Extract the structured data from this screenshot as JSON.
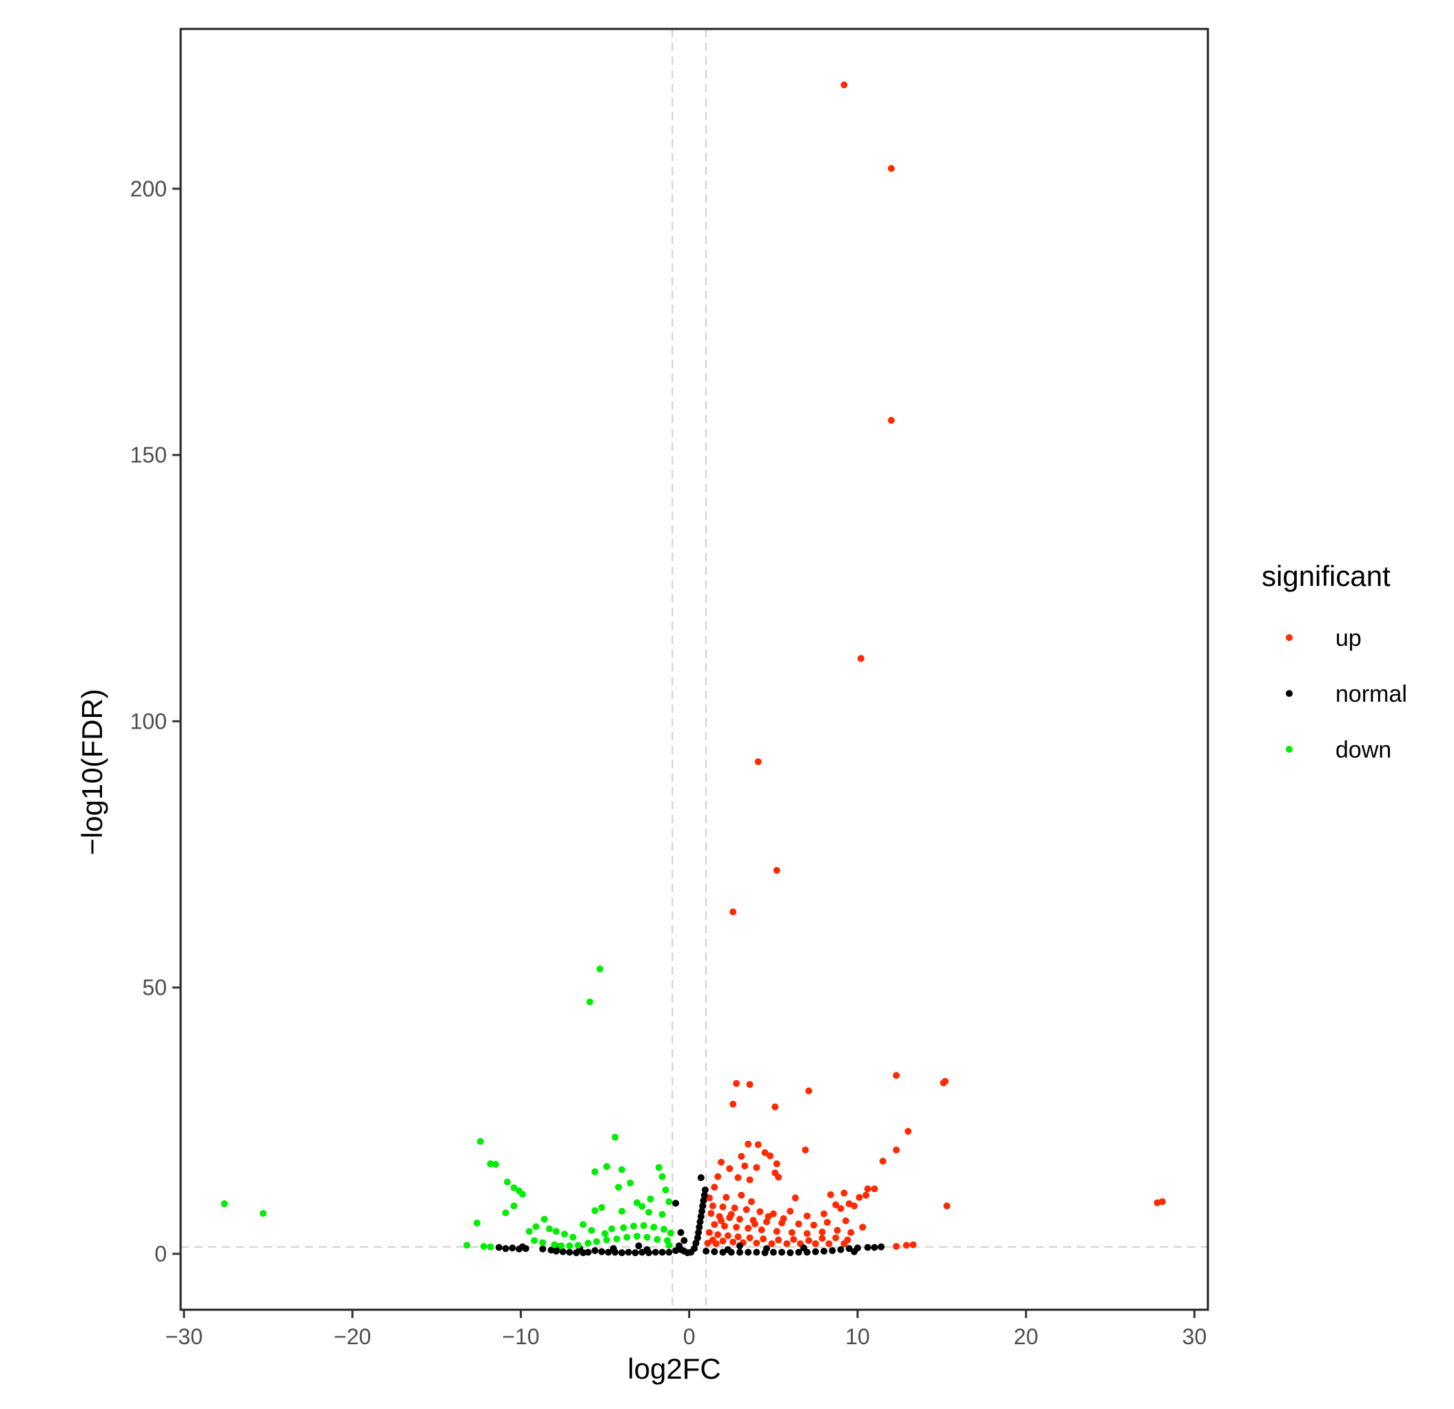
{
  "chart_data": {
    "type": "scatter",
    "title": "",
    "xlabel": "log2FC",
    "ylabel": "−log10(FDR)",
    "xlim": [
      -30.2,
      30.8
    ],
    "ylim": [
      -10.5,
      230
    ],
    "x_ticks": [
      -30,
      -20,
      -10,
      0,
      10,
      20,
      30
    ],
    "x_tick_labels": [
      "−30",
      "−20",
      "−10",
      "0",
      "10",
      "20",
      "30"
    ],
    "y_ticks": [
      0,
      50,
      100,
      150,
      200
    ],
    "y_tick_labels": [
      "0",
      "50",
      "100",
      "150",
      "200"
    ],
    "grid": false,
    "threshold_lines": {
      "x": [
        -1,
        1
      ],
      "y": [
        1.3
      ]
    },
    "legend": {
      "title": "significant",
      "position": "right",
      "entries": [
        {
          "label": "up",
          "color": "#ff2a00"
        },
        {
          "label": "normal",
          "color": "#000000"
        },
        {
          "label": "down",
          "color": "#00ee00"
        }
      ]
    },
    "series": [
      {
        "name": "up",
        "color": "#ff2a00",
        "points": [
          [
            9.2,
            219.5
          ],
          [
            12.0,
            203.8
          ],
          [
            12.0,
            156.5
          ],
          [
            10.2,
            111.8
          ],
          [
            4.1,
            92.4
          ],
          [
            5.2,
            72.0
          ],
          [
            2.6,
            64.2
          ],
          [
            12.3,
            33.5
          ],
          [
            15.2,
            32.4
          ],
          [
            15.1,
            32.1
          ],
          [
            2.8,
            32.0
          ],
          [
            3.6,
            31.8
          ],
          [
            7.1,
            30.6
          ],
          [
            5.1,
            27.6
          ],
          [
            2.6,
            28.1
          ],
          [
            13.0,
            23.0
          ],
          [
            3.5,
            20.6
          ],
          [
            4.1,
            20.5
          ],
          [
            12.3,
            19.5
          ],
          [
            6.9,
            19.5
          ],
          [
            4.5,
            19.0
          ],
          [
            3.1,
            18.3
          ],
          [
            4.8,
            18.4
          ],
          [
            11.5,
            17.4
          ],
          [
            1.9,
            17.2
          ],
          [
            5.2,
            16.9
          ],
          [
            3.3,
            16.5
          ],
          [
            2.4,
            16.0
          ],
          [
            4.0,
            16.2
          ],
          [
            5.1,
            15.2
          ],
          [
            2.9,
            14.3
          ],
          [
            3.6,
            13.9
          ],
          [
            1.7,
            14.5
          ],
          [
            5.3,
            14.4
          ],
          [
            1.5,
            12.5
          ],
          [
            10.6,
            12.2
          ],
          [
            9.2,
            11.4
          ],
          [
            10.5,
            11.0
          ],
          [
            11.0,
            12.2
          ],
          [
            6.3,
            10.5
          ],
          [
            8.4,
            11.1
          ],
          [
            8.7,
            9.2
          ],
          [
            9.5,
            9.4
          ],
          [
            15.3,
            9.0
          ],
          [
            27.8,
            9.6
          ],
          [
            28.1,
            9.8
          ],
          [
            1.2,
            10.5
          ],
          [
            2.2,
            10.6
          ],
          [
            3.1,
            11.0
          ],
          [
            3.7,
            9.8
          ],
          [
            1.4,
            9.0
          ],
          [
            2.0,
            8.8
          ],
          [
            2.7,
            8.6
          ],
          [
            3.4,
            8.3
          ],
          [
            4.2,
            7.9
          ],
          [
            5.0,
            7.5
          ],
          [
            6.0,
            8.0
          ],
          [
            7.0,
            7.1
          ],
          [
            8.0,
            7.5
          ],
          [
            9.0,
            8.5
          ],
          [
            9.8,
            9.0
          ],
          [
            10.1,
            10.6
          ],
          [
            1.3,
            7.6
          ],
          [
            1.8,
            7.0
          ],
          [
            2.4,
            6.8
          ],
          [
            3.0,
            6.5
          ],
          [
            3.8,
            6.3
          ],
          [
            4.6,
            6.0
          ],
          [
            5.5,
            5.8
          ],
          [
            6.5,
            5.6
          ],
          [
            7.4,
            5.4
          ],
          [
            8.2,
            5.9
          ],
          [
            9.3,
            6.2
          ],
          [
            10.3,
            5.0
          ],
          [
            1.5,
            5.5
          ],
          [
            2.1,
            5.2
          ],
          [
            2.8,
            5.0
          ],
          [
            3.5,
            4.8
          ],
          [
            4.3,
            4.5
          ],
          [
            5.2,
            4.2
          ],
          [
            6.1,
            4.0
          ],
          [
            7.0,
            3.8
          ],
          [
            7.9,
            4.1
          ],
          [
            8.8,
            4.4
          ],
          [
            9.6,
            4.0
          ],
          [
            1.2,
            4.0
          ],
          [
            1.7,
            3.6
          ],
          [
            2.3,
            3.4
          ],
          [
            2.9,
            3.2
          ],
          [
            3.6,
            3.0
          ],
          [
            4.4,
            2.8
          ],
          [
            5.3,
            2.6
          ],
          [
            6.2,
            2.7
          ],
          [
            7.1,
            2.5
          ],
          [
            7.9,
            2.9
          ],
          [
            8.7,
            3.0
          ],
          [
            9.4,
            2.6
          ],
          [
            1.4,
            2.6
          ],
          [
            2.0,
            2.4
          ],
          [
            2.6,
            2.2
          ],
          [
            3.2,
            2.1
          ],
          [
            4.0,
            2.0
          ],
          [
            4.9,
            1.9
          ],
          [
            5.8,
            1.9
          ],
          [
            6.6,
            1.9
          ],
          [
            7.5,
            1.9
          ],
          [
            8.3,
            1.9
          ],
          [
            9.2,
            1.9
          ],
          [
            1.1,
            2.0
          ],
          [
            1.6,
            1.9
          ],
          [
            12.3,
            1.4
          ],
          [
            12.9,
            1.6
          ],
          [
            13.3,
            1.7
          ],
          [
            1.9,
            6.2
          ],
          [
            2.5,
            7.4
          ],
          [
            3.9,
            5.6
          ],
          [
            4.7,
            7.0
          ],
          [
            5.6,
            6.6
          ]
        ]
      },
      {
        "name": "normal",
        "color": "#000000",
        "points": [
          [
            -11.3,
            1.2
          ],
          [
            -10.9,
            1.0
          ],
          [
            -10.5,
            1.1
          ],
          [
            -10.1,
            0.9
          ],
          [
            -9.7,
            1.0
          ],
          [
            -9.9,
            1.3
          ],
          [
            -8.7,
            0.9
          ],
          [
            -8.2,
            0.7
          ],
          [
            -7.9,
            0.5
          ],
          [
            -7.5,
            0.4
          ],
          [
            -7.1,
            0.3
          ],
          [
            -6.7,
            0.2
          ],
          [
            -6.3,
            0.2
          ],
          [
            -6.0,
            0.3
          ],
          [
            -5.6,
            0.6
          ],
          [
            -5.2,
            0.4
          ],
          [
            -4.8,
            0.3
          ],
          [
            -4.4,
            0.3
          ],
          [
            -4.0,
            0.2
          ],
          [
            -3.6,
            0.3
          ],
          [
            -3.2,
            0.2
          ],
          [
            -2.8,
            0.3
          ],
          [
            -2.4,
            0.2
          ],
          [
            -2.0,
            0.3
          ],
          [
            -1.6,
            0.3
          ],
          [
            -1.2,
            0.3
          ],
          [
            -0.8,
            0.6
          ],
          [
            -0.5,
            0.8
          ],
          [
            -0.3,
            0.5
          ],
          [
            -0.1,
            0.2
          ],
          [
            0.1,
            0.3
          ],
          [
            0.3,
            1.0
          ],
          [
            0.4,
            2.0
          ],
          [
            0.5,
            3.0
          ],
          [
            0.55,
            4.0
          ],
          [
            0.6,
            5.0
          ],
          [
            0.65,
            6.0
          ],
          [
            0.7,
            7.0
          ],
          [
            0.75,
            8.0
          ],
          [
            0.8,
            9.0
          ],
          [
            0.85,
            10.0
          ],
          [
            0.9,
            11.0
          ],
          [
            0.95,
            12.0
          ],
          [
            0.7,
            14.3
          ],
          [
            -0.8,
            9.5
          ],
          [
            -0.5,
            4.0
          ],
          [
            -0.3,
            2.5
          ],
          [
            -0.6,
            1.5
          ],
          [
            1.0,
            0.5
          ],
          [
            1.5,
            0.4
          ],
          [
            2.0,
            0.3
          ],
          [
            2.5,
            0.3
          ],
          [
            3.0,
            0.3
          ],
          [
            3.5,
            0.3
          ],
          [
            4.0,
            0.3
          ],
          [
            4.5,
            0.2
          ],
          [
            5.0,
            0.3
          ],
          [
            5.5,
            0.3
          ],
          [
            6.0,
            0.2
          ],
          [
            6.5,
            0.3
          ],
          [
            7.0,
            0.3
          ],
          [
            7.5,
            0.4
          ],
          [
            8.0,
            0.5
          ],
          [
            8.5,
            0.6
          ],
          [
            9.0,
            0.8
          ],
          [
            9.5,
            1.0
          ],
          [
            9.8,
            0.4
          ],
          [
            10.0,
            1.1
          ],
          [
            10.6,
            1.2
          ],
          [
            11.0,
            1.2
          ],
          [
            11.4,
            1.3
          ],
          [
            -2.5,
            0.8
          ],
          [
            2.3,
            0.8
          ],
          [
            -4.5,
            1.0
          ],
          [
            4.6,
            1.0
          ],
          [
            -6.5,
            1.0
          ],
          [
            6.8,
            1.1
          ],
          [
            -7.8,
            1.3
          ],
          [
            -3.0,
            1.5
          ],
          [
            3.0,
            1.5
          ]
        ]
      },
      {
        "name": "down",
        "color": "#00ee00",
        "points": [
          [
            -5.3,
            53.5
          ],
          [
            -5.9,
            47.3
          ],
          [
            -27.6,
            9.4
          ],
          [
            -25.3,
            7.6
          ],
          [
            -12.4,
            21.1
          ],
          [
            -11.8,
            16.9
          ],
          [
            -11.5,
            16.8
          ],
          [
            -10.8,
            13.5
          ],
          [
            -10.4,
            12.4
          ],
          [
            -10.1,
            11.8
          ],
          [
            -9.9,
            11.2
          ],
          [
            -10.4,
            9.0
          ],
          [
            -10.9,
            7.7
          ],
          [
            -12.6,
            5.8
          ],
          [
            -13.2,
            1.6
          ],
          [
            -12.2,
            1.4
          ],
          [
            -11.8,
            1.3
          ],
          [
            -4.4,
            21.9
          ],
          [
            -4.9,
            16.4
          ],
          [
            -5.6,
            15.4
          ],
          [
            -4.0,
            15.8
          ],
          [
            -1.8,
            16.2
          ],
          [
            -1.6,
            14.5
          ],
          [
            -3.5,
            13.3
          ],
          [
            -4.2,
            12.5
          ],
          [
            -1.4,
            12.0
          ],
          [
            -2.3,
            10.3
          ],
          [
            -3.1,
            9.6
          ],
          [
            -2.8,
            8.9
          ],
          [
            -1.2,
            9.8
          ],
          [
            -5.2,
            8.7
          ],
          [
            -5.6,
            8.1
          ],
          [
            -4.0,
            8.0
          ],
          [
            -2.4,
            7.8
          ],
          [
            -1.6,
            7.4
          ],
          [
            -9.5,
            4.2
          ],
          [
            -9.1,
            5.1
          ],
          [
            -8.6,
            6.5
          ],
          [
            -8.3,
            4.7
          ],
          [
            -7.9,
            4.2
          ],
          [
            -7.4,
            3.7
          ],
          [
            -6.9,
            3.1
          ],
          [
            -9.2,
            2.5
          ],
          [
            -8.7,
            2.1
          ],
          [
            -8.0,
            1.7
          ],
          [
            -7.6,
            1.5
          ],
          [
            -6.3,
            5.5
          ],
          [
            -5.8,
            4.4
          ],
          [
            -5.0,
            3.8
          ],
          [
            -4.6,
            4.7
          ],
          [
            -3.9,
            4.9
          ],
          [
            -3.3,
            5.2
          ],
          [
            -2.7,
            5.3
          ],
          [
            -2.1,
            5.0
          ],
          [
            -1.5,
            4.6
          ],
          [
            -1.1,
            3.9
          ],
          [
            -1.3,
            2.5
          ],
          [
            -1.9,
            2.7
          ],
          [
            -2.5,
            3.1
          ],
          [
            -3.1,
            3.3
          ],
          [
            -3.7,
            3.1
          ],
          [
            -4.3,
            2.8
          ],
          [
            -4.9,
            2.6
          ],
          [
            -5.5,
            2.3
          ],
          [
            -6.0,
            2.0
          ],
          [
            -6.6,
            1.6
          ],
          [
            -7.1,
            1.5
          ],
          [
            -1.2,
            1.6
          ]
        ]
      }
    ]
  }
}
